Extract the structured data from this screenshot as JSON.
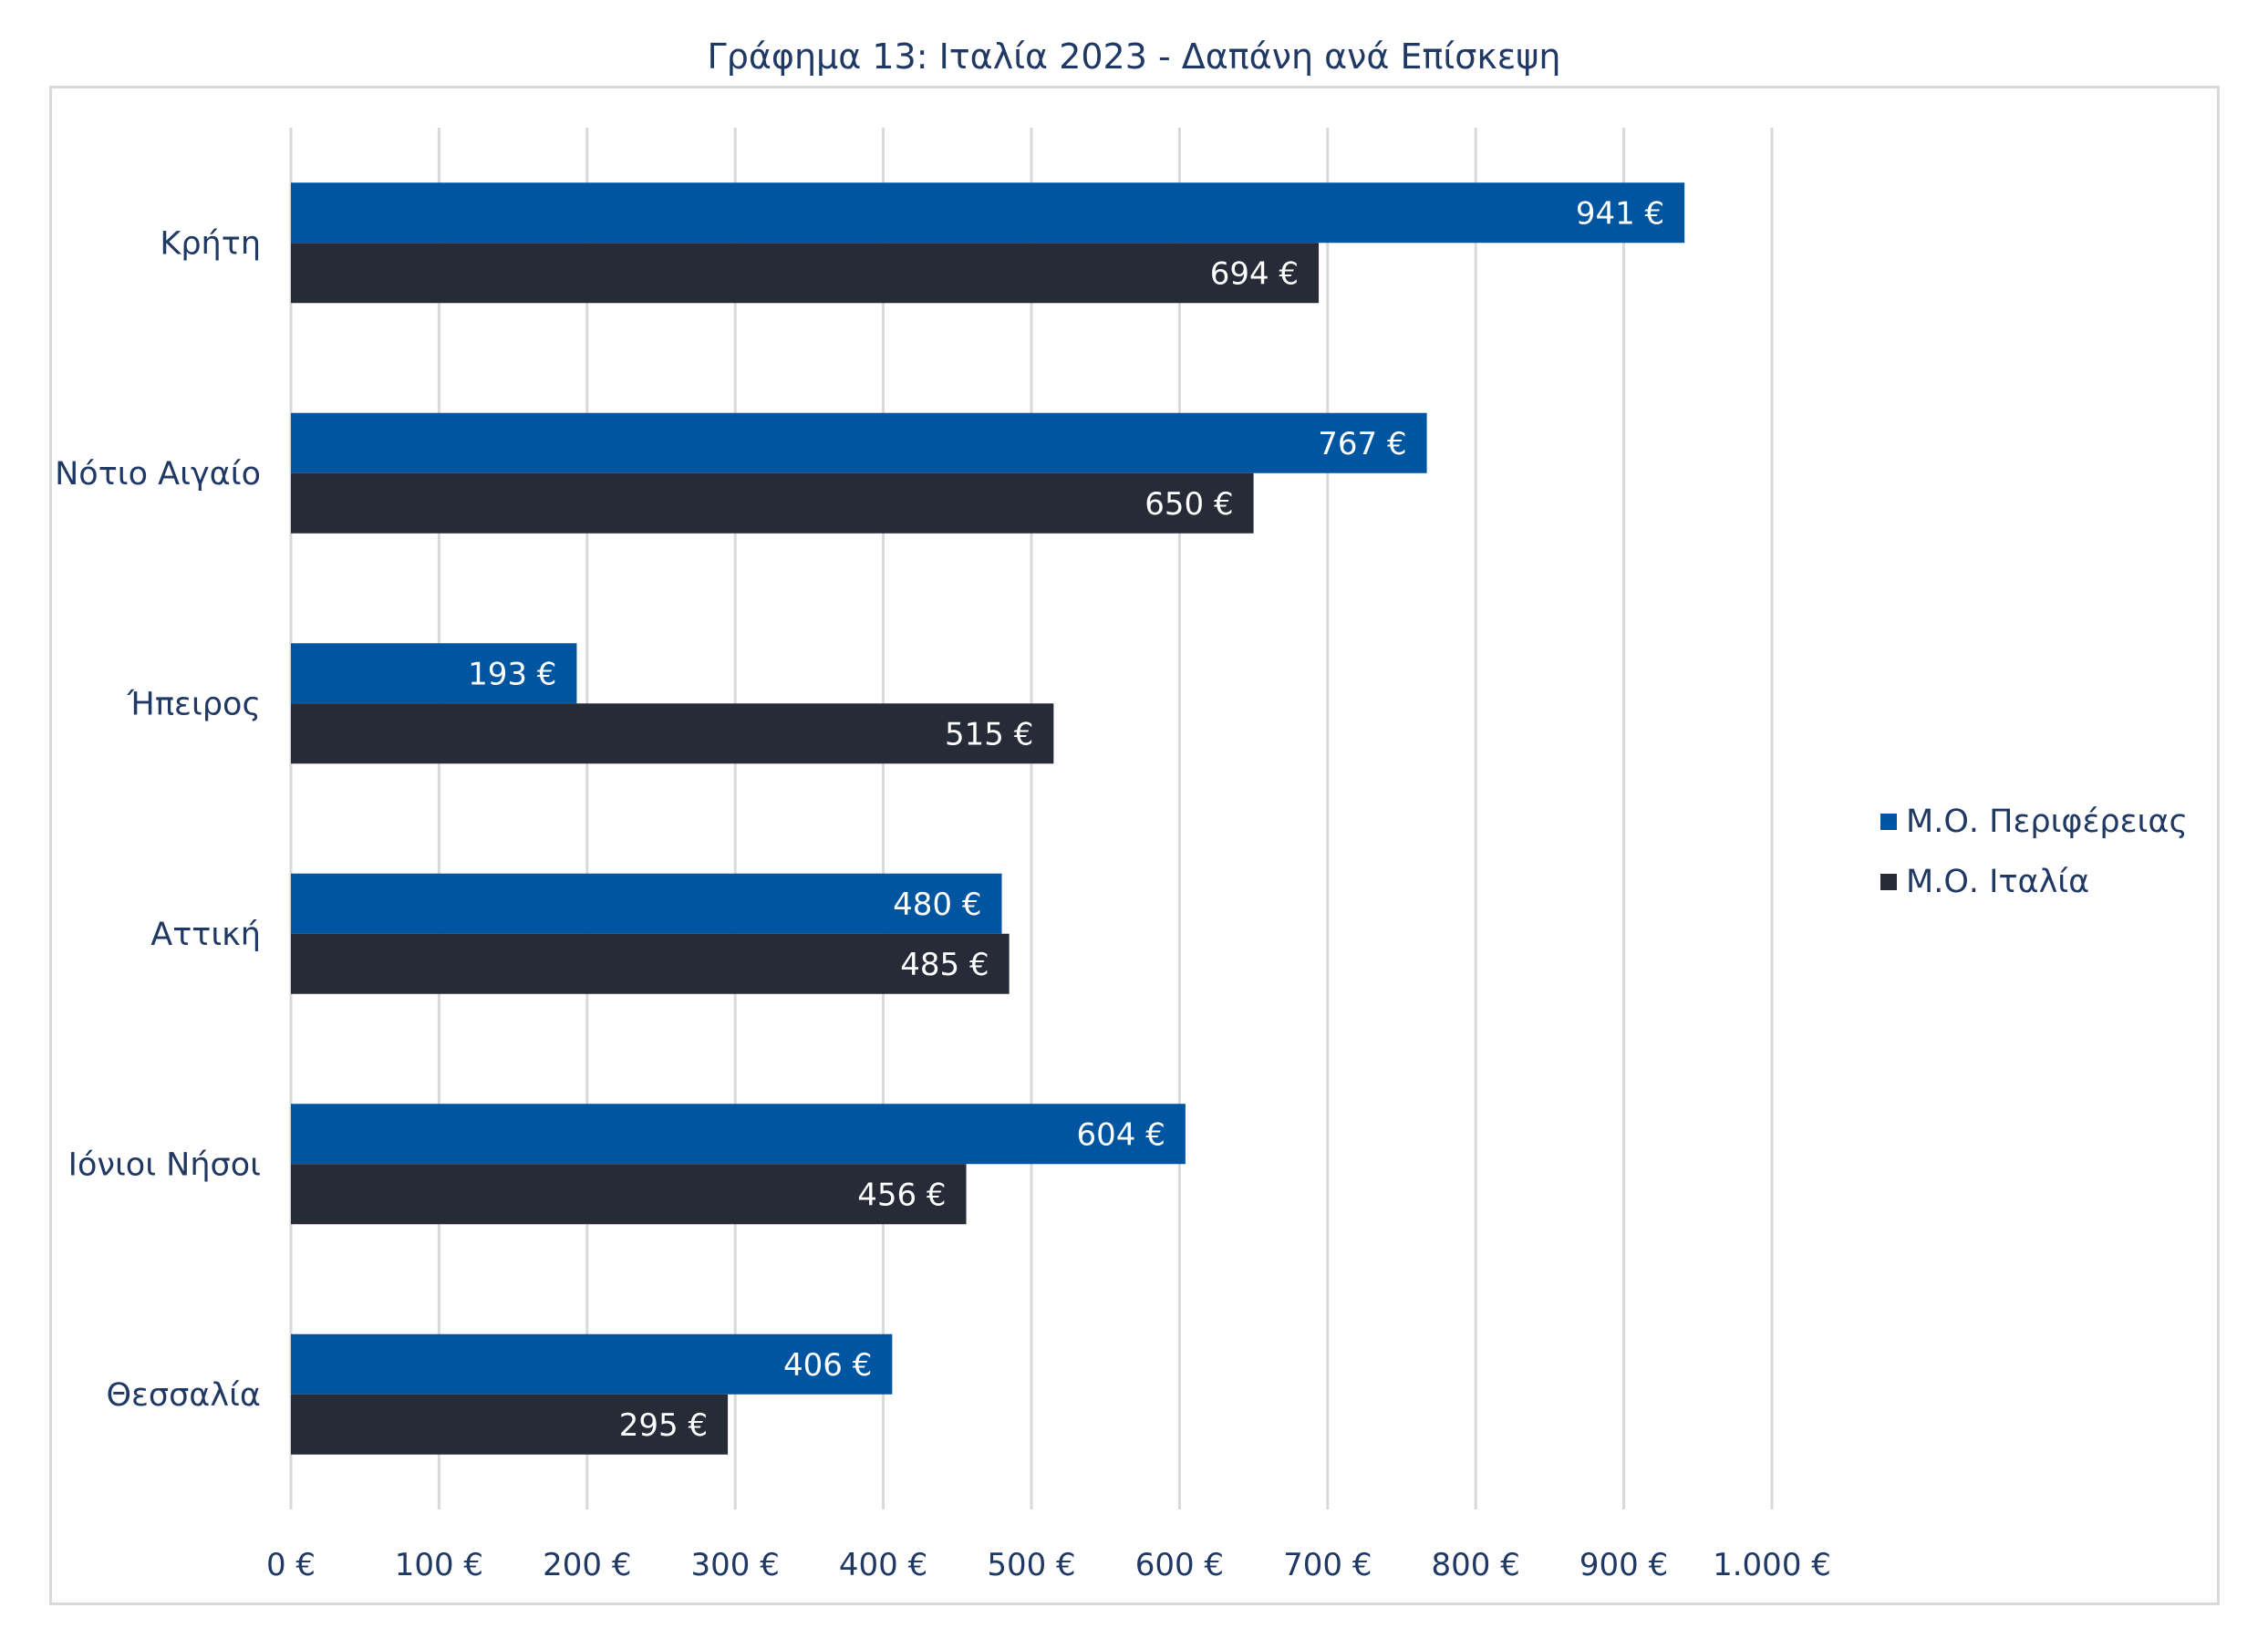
{
  "chart_data": {
    "type": "bar",
    "orientation": "horizontal",
    "title": "Γράφημα 13: Ιταλία 2023 - Δαπάνη ανά Επίσκεψη",
    "categories": [
      "Κρήτη",
      "Νότιο Αιγαίο",
      "Ήπειρος",
      "Αττική",
      "Ιόνιοι Νήσοι",
      "Θεσσαλία"
    ],
    "series": [
      {
        "name": "Μ.Ο. Περιφέρειας",
        "color": "#0055a0",
        "values": [
          941,
          767,
          193,
          480,
          604,
          406
        ],
        "labels": [
          "941 €",
          "767 €",
          "193 €",
          "480 €",
          "604 €",
          "406 €"
        ]
      },
      {
        "name": "Μ.Ο. Ιταλία",
        "color": "#262b37",
        "values": [
          694,
          650,
          515,
          485,
          456,
          295
        ],
        "labels": [
          "694 €",
          "650 €",
          "515 €",
          "485 €",
          "456 €",
          "295 €"
        ]
      }
    ],
    "xlim": [
      0,
      1000
    ],
    "xticks": [
      0,
      100,
      200,
      300,
      400,
      500,
      600,
      700,
      800,
      900,
      1000
    ],
    "xtick_labels": [
      "0 €",
      "100 €",
      "200 €",
      "300 €",
      "400 €",
      "500 €",
      "600 €",
      "700 €",
      "800 €",
      "900 €",
      "1.000 €"
    ],
    "grid": true,
    "legend_position": "right"
  }
}
